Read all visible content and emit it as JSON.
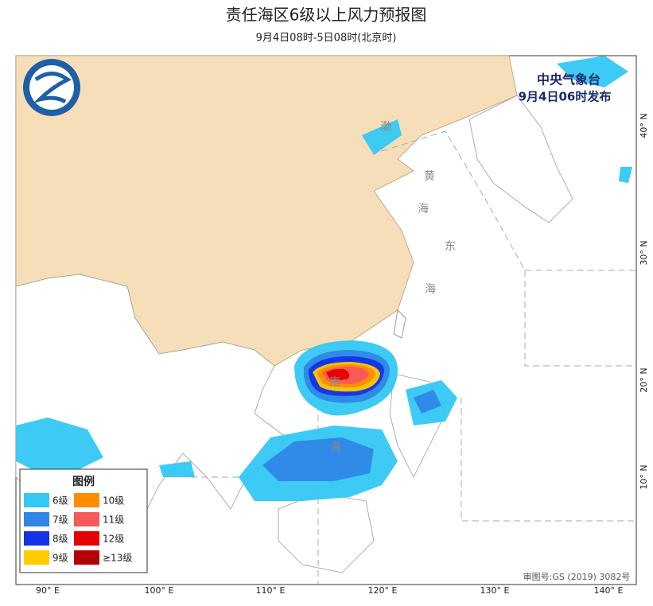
{
  "header": {
    "title": "责任海区6级以上风力预报图",
    "subtitle": "9月4日08时-5日08时(北京时)"
  },
  "issuer": {
    "agency": "中央气象台",
    "issued": "9月4日06时发布"
  },
  "legend": {
    "title": "图例",
    "items": [
      {
        "label": "6级",
        "color": "#33c8f5"
      },
      {
        "label": "7级",
        "color": "#2f86e6"
      },
      {
        "label": "8级",
        "color": "#1432e6"
      },
      {
        "label": "9级",
        "color": "#ffcc00"
      },
      {
        "label": "10级",
        "color": "#ff8c00"
      },
      {
        "label": "11级",
        "color": "#f55a5a"
      },
      {
        "label": "12级",
        "color": "#e60000"
      },
      {
        "label": "≥13级",
        "color": "#b40000"
      }
    ]
  },
  "axes": {
    "longitude": [
      "90° E",
      "100° E",
      "110° E",
      "120° E",
      "130° E",
      "140° E"
    ],
    "latitude": [
      "40° N",
      "30° N",
      "20° N",
      "10° N"
    ]
  },
  "sea_labels": [
    "渤",
    "黄",
    "海",
    "东",
    "海",
    "南",
    "海"
  ],
  "map_number": "审图号:GS (2019) 3082号"
}
